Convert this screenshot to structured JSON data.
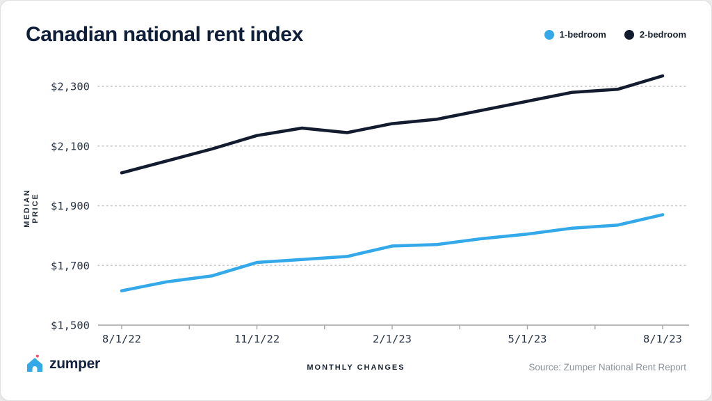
{
  "header": {
    "title": "Canadian national rent index"
  },
  "chart_data": {
    "type": "line",
    "title": "Canadian national rent index",
    "xlabel": "MONTHLY CHANGES",
    "ylabel": "MEDIAN PRICE",
    "x": [
      "8/1/22",
      "9/1/22",
      "10/1/22",
      "11/1/22",
      "12/1/22",
      "1/1/23",
      "2/1/23",
      "3/1/23",
      "4/1/23",
      "5/1/23",
      "6/1/23",
      "7/1/23",
      "8/1/23"
    ],
    "x_tick_labels": [
      "8/1/22",
      "11/1/22",
      "2/1/23",
      "5/1/23",
      "8/1/23"
    ],
    "y_ticks": [
      1500,
      1700,
      1900,
      2100,
      2300
    ],
    "y_tick_labels": [
      "$1,500",
      "$1,700",
      "$1,900",
      "$2,100",
      "$2,300"
    ],
    "ylim": [
      1500,
      2380
    ],
    "grid": "dotted-horizontal",
    "legend_position": "top-right",
    "series": [
      {
        "name": "1-bedroom",
        "color": "#33a9ea",
        "values": [
          1615,
          1645,
          1665,
          1710,
          1720,
          1730,
          1765,
          1770,
          1790,
          1805,
          1825,
          1835,
          1870
        ]
      },
      {
        "name": "2-bedroom",
        "color": "#131b2e",
        "values": [
          2010,
          2050,
          2090,
          2135,
          2160,
          2145,
          2175,
          2190,
          2220,
          2250,
          2280,
          2290,
          2335
        ]
      }
    ]
  },
  "footer": {
    "logo_text": "zumper",
    "source": "Source: Zumper National Rent Report"
  },
  "colors": {
    "grid": "#cbcbcb",
    "axis_line": "#b9b9b9",
    "tick_mark": "#a9a9a9",
    "logo_house": "#33a9ea",
    "logo_heart": "#ff4d6d"
  }
}
